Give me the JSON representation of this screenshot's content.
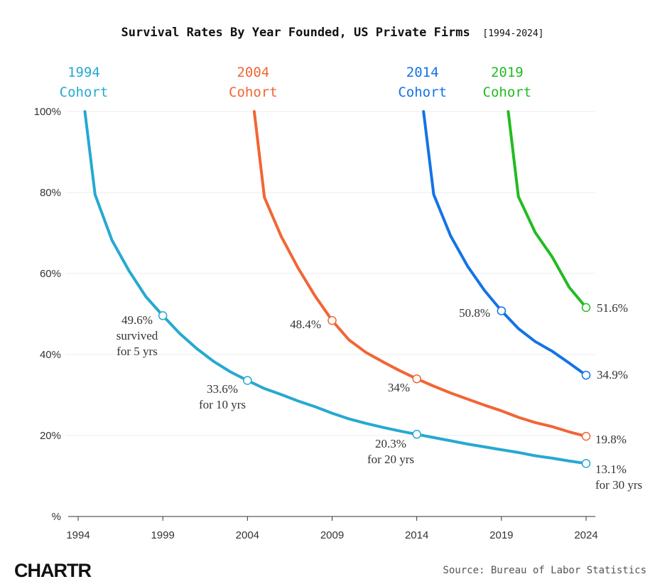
{
  "chart_data": {
    "type": "line",
    "title": "Survival Rates By Year Founded, US Private Firms",
    "title_range": "[1994-2024]",
    "xlabel": "",
    "ylabel": "",
    "xlim": [
      1994,
      2024
    ],
    "ylim": [
      0,
      100
    ],
    "x_ticks": [
      {
        "value": 1994,
        "label": "1994"
      },
      {
        "value": 1999,
        "label": "1999"
      },
      {
        "value": 2004,
        "label": "2004"
      },
      {
        "value": 2009,
        "label": "2009"
      },
      {
        "value": 2014,
        "label": "2014"
      },
      {
        "value": 2019,
        "label": "2019"
      },
      {
        "value": 2024,
        "label": "2024"
      }
    ],
    "y_ticks": [
      {
        "value": 0,
        "label": "%"
      },
      {
        "value": 20,
        "label": "20%"
      },
      {
        "value": 40,
        "label": "40%"
      },
      {
        "value": 60,
        "label": "60%"
      },
      {
        "value": 80,
        "label": "80%"
      },
      {
        "value": 100,
        "label": "100%"
      }
    ],
    "grid": true,
    "series": [
      {
        "name": "1994",
        "label_year": "1994",
        "label_word": "Cohort",
        "color": "#26a9d1",
        "x": [
          1994.4,
          1995,
          1996,
          1997,
          1998,
          1999,
          2000,
          2001,
          2002,
          2003,
          2004,
          2005,
          2006,
          2007,
          2008,
          2009,
          2010,
          2011,
          2012,
          2013,
          2014,
          2015,
          2016,
          2017,
          2018,
          2019,
          2020,
          2021,
          2022,
          2023,
          2024
        ],
        "values": [
          100,
          79.5,
          68.2,
          60.7,
          54.3,
          49.6,
          45.2,
          41.5,
          38.3,
          35.7,
          33.6,
          31.6,
          30.1,
          28.5,
          27.1,
          25.5,
          24.1,
          23.0,
          22.0,
          21.1,
          20.3,
          19.5,
          18.7,
          17.9,
          17.2,
          16.5,
          15.8,
          15.0,
          14.4,
          13.7,
          13.1
        ],
        "markers": [
          {
            "x": 1999,
            "value": 49.6
          },
          {
            "x": 2004,
            "value": 33.6
          },
          {
            "x": 2014,
            "value": 20.3
          },
          {
            "x": 2024,
            "value": 13.1
          }
        ]
      },
      {
        "name": "2004",
        "label_year": "2004",
        "label_word": "Cohort",
        "color": "#f26535",
        "x": [
          2004.4,
          2005,
          2006,
          2007,
          2008,
          2009,
          2010,
          2011,
          2012,
          2013,
          2014,
          2015,
          2016,
          2017,
          2018,
          2019,
          2020,
          2021,
          2022,
          2023,
          2024
        ],
        "values": [
          100,
          78.8,
          69.1,
          61.3,
          54.4,
          48.4,
          43.6,
          40.5,
          38.2,
          36.0,
          34.0,
          32.2,
          30.5,
          29.0,
          27.5,
          26.1,
          24.5,
          23.2,
          22.2,
          20.9,
          19.8
        ],
        "markers": [
          {
            "x": 2009,
            "value": 48.4
          },
          {
            "x": 2014,
            "value": 34.0
          },
          {
            "x": 2024,
            "value": 19.8
          }
        ]
      },
      {
        "name": "2014",
        "label_year": "2014",
        "label_word": "Cohort",
        "color": "#1473e6",
        "x": [
          2014.4,
          2015,
          2016,
          2017,
          2018,
          2019,
          2020,
          2021,
          2022,
          2023,
          2024
        ],
        "values": [
          100,
          79.5,
          69.3,
          61.8,
          55.8,
          50.8,
          46.4,
          43.2,
          40.8,
          37.9,
          34.9
        ],
        "markers": [
          {
            "x": 2019,
            "value": 50.8
          },
          {
            "x": 2024,
            "value": 34.9
          }
        ]
      },
      {
        "name": "2019",
        "label_year": "2019",
        "label_word": "Cohort",
        "color": "#22bb22",
        "x": [
          2019.4,
          2020,
          2021,
          2022,
          2023,
          2024
        ],
        "values": [
          100,
          79.0,
          70.1,
          64.1,
          56.6,
          51.6
        ],
        "markers": [
          {
            "x": 2024,
            "value": 51.6
          }
        ]
      }
    ],
    "annotations": [
      {
        "series": "1994",
        "lines": [
          "49.6%",
          "survived",
          "for 5 yrs"
        ]
      },
      {
        "series": "1994",
        "lines": [
          "33.6%",
          "for 10 yrs"
        ]
      },
      {
        "series": "1994",
        "lines": [
          "20.3%",
          "for 20 yrs"
        ]
      },
      {
        "series": "1994",
        "lines": [
          "13.1%",
          "for 30 yrs"
        ]
      },
      {
        "series": "2004",
        "lines": [
          "48.4%"
        ]
      },
      {
        "series": "2004",
        "lines": [
          "34%"
        ]
      },
      {
        "series": "2004",
        "lines": [
          "19.8%"
        ]
      },
      {
        "series": "2014",
        "lines": [
          "50.8%"
        ]
      },
      {
        "series": "2014",
        "lines": [
          "34.9%"
        ]
      },
      {
        "series": "2019",
        "lines": [
          "51.6%"
        ]
      }
    ]
  },
  "footer": {
    "logo": "CHARTR",
    "source": "Source: Bureau of Labor Statistics"
  }
}
